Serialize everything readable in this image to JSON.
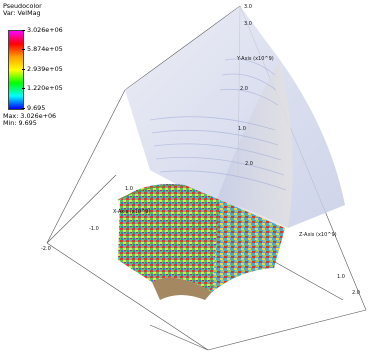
{
  "legend": {
    "plot_type": "Pseudocolor",
    "variable": "Var: VelMag",
    "ticks": [
      "3.026e+06",
      "5.874e+05",
      "2.939e+05",
      "1.220e+05",
      "9.695"
    ],
    "max": "Max: 3.026e+06",
    "min": "Min: 9.695",
    "colormap": [
      "#ff00ff",
      "#ff0000",
      "#ffa000",
      "#ffff00",
      "#00ff00",
      "#00ffff",
      "#0000ff"
    ]
  },
  "axes": {
    "x_title": "X-Axis (x10^9)",
    "y_title": "Y-Axis (x10^9)",
    "z_title": "Z-Axis (x10^9)",
    "x_ticks": [
      "-2.0",
      "-1.0",
      "1.0",
      "2.0"
    ],
    "y_ticks": [
      "3.0",
      "2.0",
      "1.0"
    ],
    "z_ticks": [
      "1.0",
      "2.0",
      "3.0"
    ]
  }
}
